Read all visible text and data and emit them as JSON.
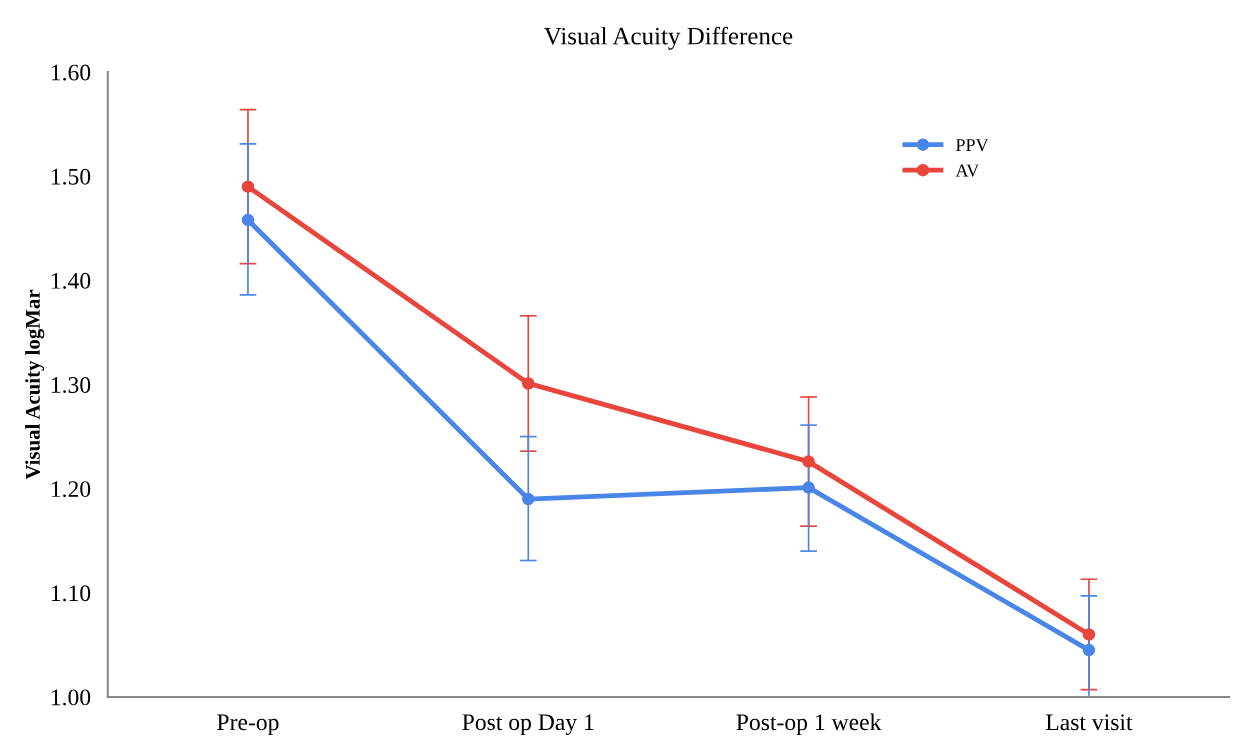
{
  "chart_data": {
    "type": "line",
    "title": "Visual Acuity Difference",
    "ylabel": "Visual Acuity logMar",
    "categories": [
      "Pre-op",
      "Post op Day 1",
      "Post-op 1 week",
      "Last visit"
    ],
    "series": [
      {
        "name": "PPV",
        "color": "#4a86e8",
        "values": [
          1.458,
          1.19,
          1.201,
          1.045
        ],
        "errors": [
          [
            1.386,
            1.531
          ],
          [
            1.131,
            1.25
          ],
          [
            1.14,
            1.261
          ],
          [
            1.0,
            1.097
          ]
        ]
      },
      {
        "name": "AV",
        "color": "#e8453c",
        "values": [
          1.49,
          1.301,
          1.226,
          1.06
        ],
        "errors": [
          [
            1.416,
            1.564
          ],
          [
            1.236,
            1.366
          ],
          [
            1.164,
            1.288
          ],
          [
            1.007,
            1.113
          ]
        ]
      }
    ],
    "ylim": [
      1.0,
      1.6
    ],
    "yticks": [
      {
        "value": 1.0,
        "label": "1.00"
      },
      {
        "value": 1.1,
        "label": "1.10"
      },
      {
        "value": 1.2,
        "label": "1.20"
      },
      {
        "value": 1.3,
        "label": "1.30"
      },
      {
        "value": 1.4,
        "label": "1.40"
      },
      {
        "value": 1.5,
        "label": "1.50"
      },
      {
        "value": 1.6,
        "label": "1.60"
      }
    ],
    "grid": false,
    "legend": "top right",
    "marker": "circle",
    "line_style": "solid"
  }
}
